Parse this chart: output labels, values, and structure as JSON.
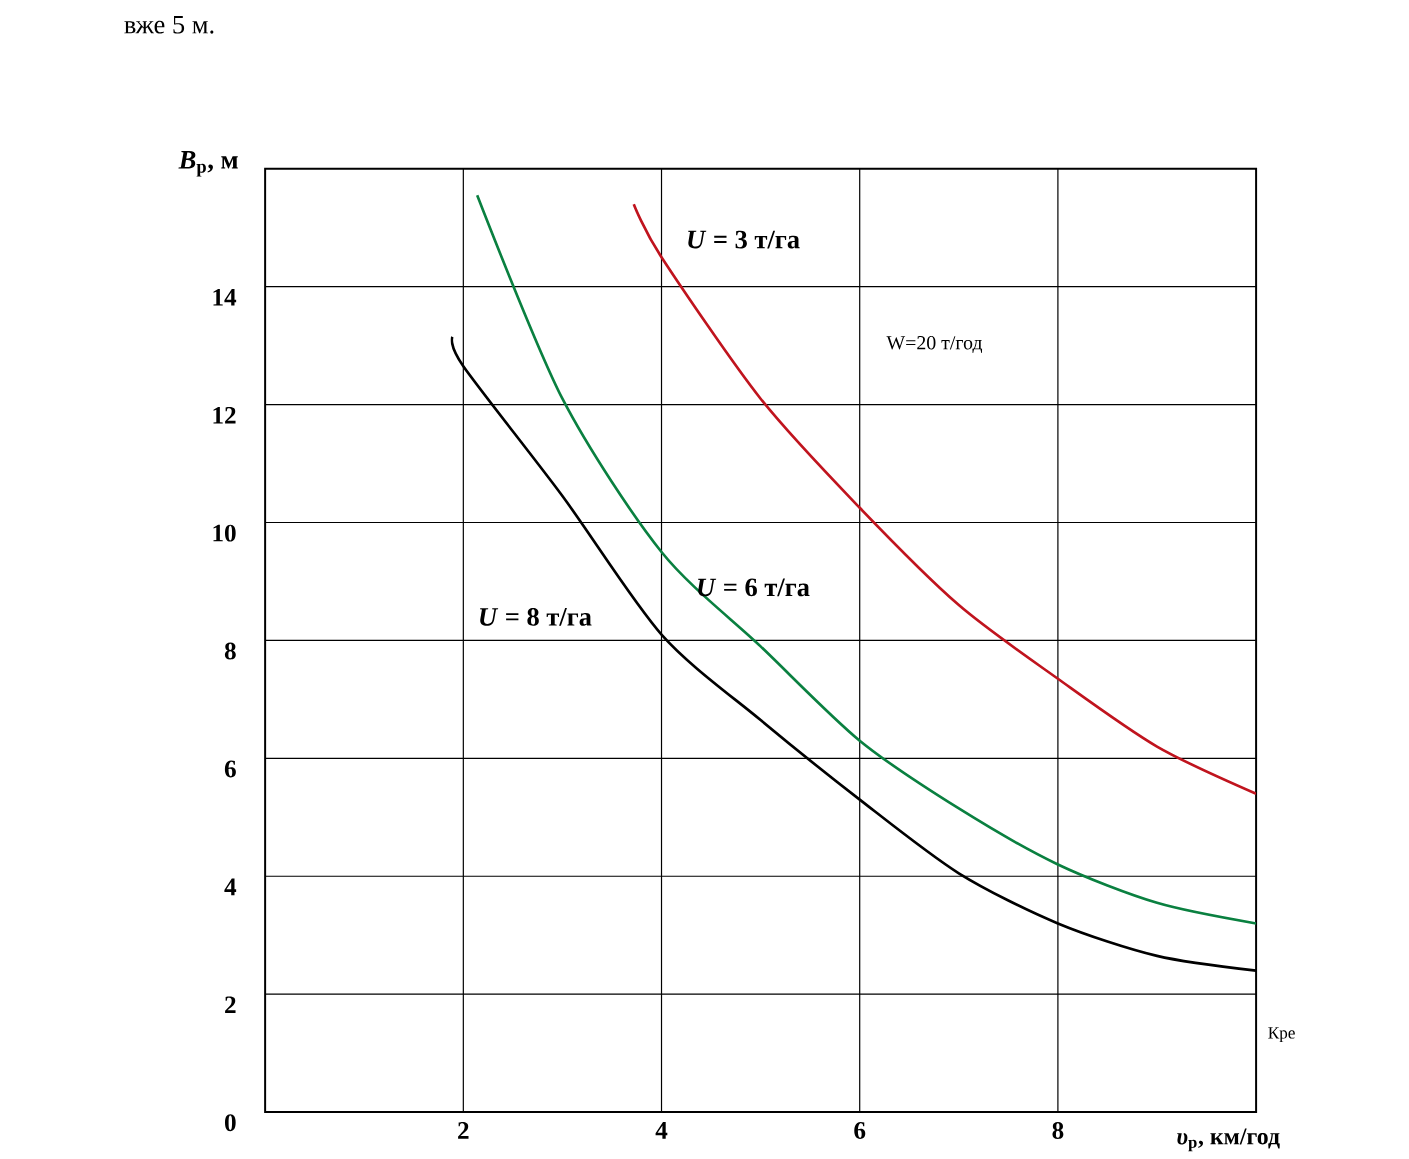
{
  "chart_data": {
    "type": "line",
    "xlabel": "*υ*$_{p}$, км/год",
    "ylabel": "*B*$_{p}$, м",
    "xlim": [
      0,
      10
    ],
    "ylim": [
      0,
      16
    ],
    "xticks": [
      2,
      4,
      6,
      8
    ],
    "yticks": [
      0,
      2,
      4,
      6,
      8,
      10,
      12,
      14
    ],
    "grid": true,
    "series": [
      {
        "name": "*U* = 3 т/га",
        "color": "#c0141e",
        "x": [
          3.72,
          4,
          5,
          6,
          7,
          8,
          9,
          10
        ],
        "values": [
          15.4,
          14.5,
          12.1,
          10.25,
          8.6,
          7.35,
          6.2,
          5.4
        ]
      },
      {
        "name": "*U* = 6 т/га",
        "color": "#0a8040",
        "x": [
          2.14,
          3,
          4,
          5,
          6,
          7,
          8,
          9,
          10
        ],
        "values": [
          15.55,
          12.1,
          9.5,
          7.9,
          6.3,
          5.15,
          4.2,
          3.55,
          3.2
        ]
      },
      {
        "name": "*U* = 8 т/га",
        "color": "#000000",
        "x": [
          1.89,
          2,
          3,
          4,
          5,
          6,
          7,
          8,
          9,
          10
        ],
        "values": [
          13.15,
          12.65,
          10.45,
          8.1,
          6.65,
          5.3,
          4.05,
          3.2,
          2.65,
          2.4
        ]
      }
    ],
    "annotations": [
      "вже 5 м.",
      "W=20 т/год",
      "Кре"
    ]
  }
}
